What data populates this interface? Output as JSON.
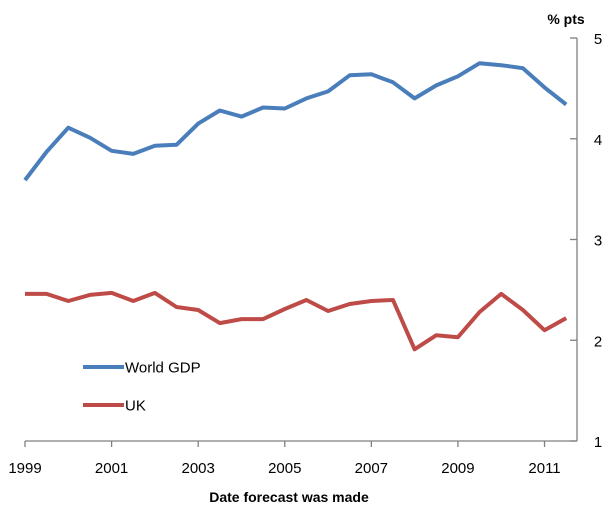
{
  "chart_data": {
    "type": "line",
    "title": "",
    "xlabel": "Date forecast was made",
    "ylabel": "% pts",
    "xlim": [
      1999,
      2011.75
    ],
    "ylim": [
      1,
      5
    ],
    "x_ticks": [
      1999,
      2001,
      2003,
      2005,
      2007,
      2009,
      2011
    ],
    "y_ticks": [
      1,
      2,
      3,
      4,
      5
    ],
    "grid": false,
    "y_axis_side": "right",
    "legend": {
      "placement": "lower-left"
    },
    "x": [
      1999.0,
      1999.5,
      2000.0,
      2000.5,
      2001.0,
      2001.5,
      2002.0,
      2002.5,
      2003.0,
      2003.5,
      2004.0,
      2004.5,
      2005.0,
      2005.5,
      2006.0,
      2006.5,
      2007.0,
      2007.5,
      2008.0,
      2008.5,
      2009.0,
      2009.5,
      2010.0,
      2010.5,
      2011.0,
      2011.5
    ],
    "series": [
      {
        "name": "World GDP",
        "color": "#4a7ebb",
        "values": [
          3.59,
          3.87,
          4.11,
          4.01,
          3.88,
          3.85,
          3.93,
          3.94,
          4.15,
          4.28,
          4.22,
          4.31,
          4.3,
          4.4,
          4.47,
          4.63,
          4.64,
          4.56,
          4.4,
          4.53,
          4.62,
          4.75,
          4.73,
          4.7,
          4.51,
          4.34
        ]
      },
      {
        "name": "UK",
        "color": "#be4b48",
        "values": [
          2.46,
          2.46,
          2.39,
          2.45,
          2.47,
          2.39,
          2.47,
          2.33,
          2.3,
          2.17,
          2.21,
          2.21,
          2.31,
          2.4,
          2.29,
          2.36,
          2.39,
          2.4,
          1.91,
          2.05,
          2.03,
          2.28,
          2.46,
          2.3,
          2.1,
          2.22
        ]
      }
    ]
  }
}
